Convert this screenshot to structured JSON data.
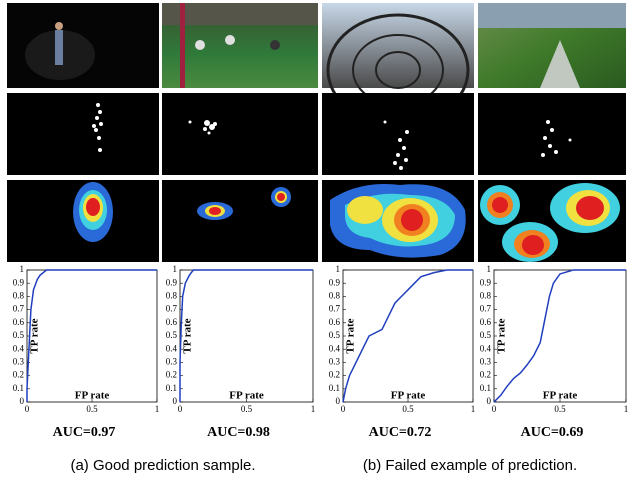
{
  "chart_data": [
    {
      "type": "line",
      "title": "AUC=0.97",
      "xlabel": "FP rate",
      "ylabel": "TP rate",
      "x": [
        0,
        0,
        0.01,
        0.02,
        0.03,
        0.05,
        0.08,
        0.1,
        0.15,
        1
      ],
      "series": [
        {
          "color": "#1f3fbf",
          "values": [
            0,
            0.1,
            0.3,
            0.5,
            0.7,
            0.85,
            0.93,
            0.96,
            1,
            1
          ]
        }
      ],
      "xlim": [
        0,
        1
      ],
      "ylim": [
        0,
        1
      ],
      "xticks": [
        0,
        0.5,
        1
      ],
      "yticks": [
        0,
        0.1,
        0.2,
        0.3,
        0.4,
        0.5,
        0.6,
        0.7,
        0.8,
        0.9,
        1
      ]
    },
    {
      "type": "line",
      "title": "AUC=0.98",
      "xlabel": "FP rate",
      "ylabel": "TP rate",
      "x": [
        0,
        0,
        0.01,
        0.02,
        0.04,
        0.07,
        0.1,
        1
      ],
      "series": [
        {
          "color": "#1f3fbf",
          "values": [
            0,
            0.3,
            0.6,
            0.8,
            0.9,
            0.96,
            1,
            1
          ]
        }
      ],
      "xlim": [
        0,
        1
      ],
      "ylim": [
        0,
        1
      ],
      "xticks": [
        0,
        0.5,
        1
      ],
      "yticks": [
        0,
        0.1,
        0.2,
        0.3,
        0.4,
        0.5,
        0.6,
        0.7,
        0.8,
        0.9,
        1
      ]
    },
    {
      "type": "line",
      "title": "AUC=0.72",
      "xlabel": "FP rate",
      "ylabel": "TP rate",
      "x": [
        0,
        0.02,
        0.05,
        0.1,
        0.15,
        0.2,
        0.3,
        0.35,
        0.4,
        0.45,
        0.5,
        0.55,
        0.6,
        0.7,
        0.8,
        1
      ],
      "series": [
        {
          "color": "#1f3fbf",
          "values": [
            0,
            0.1,
            0.2,
            0.3,
            0.4,
            0.5,
            0.55,
            0.65,
            0.75,
            0.8,
            0.85,
            0.9,
            0.95,
            0.98,
            1,
            1
          ]
        }
      ],
      "xlim": [
        0,
        1
      ],
      "ylim": [
        0,
        1
      ],
      "xticks": [
        0,
        0.5,
        1
      ],
      "yticks": [
        0,
        0.1,
        0.2,
        0.3,
        0.4,
        0.5,
        0.6,
        0.7,
        0.8,
        0.9,
        1
      ]
    },
    {
      "type": "line",
      "title": "AUC=0.69",
      "xlabel": "FP rate",
      "ylabel": "TP rate",
      "x": [
        0,
        0.05,
        0.1,
        0.15,
        0.2,
        0.25,
        0.3,
        0.35,
        0.38,
        0.42,
        0.45,
        0.5,
        0.6,
        1
      ],
      "series": [
        {
          "color": "#1f3fbf",
          "values": [
            0,
            0.05,
            0.12,
            0.18,
            0.22,
            0.28,
            0.35,
            0.45,
            0.6,
            0.8,
            0.9,
            0.97,
            1,
            1
          ]
        }
      ],
      "xlim": [
        0,
        1
      ],
      "ylim": [
        0,
        1
      ],
      "xticks": [
        0,
        0.5,
        1
      ],
      "yticks": [
        0,
        0.1,
        0.2,
        0.3,
        0.4,
        0.5,
        0.6,
        0.7,
        0.8,
        0.9,
        1
      ]
    }
  ],
  "captions": [
    "(a) Good prediction sample.",
    "(b) Failed example of prediction."
  ]
}
